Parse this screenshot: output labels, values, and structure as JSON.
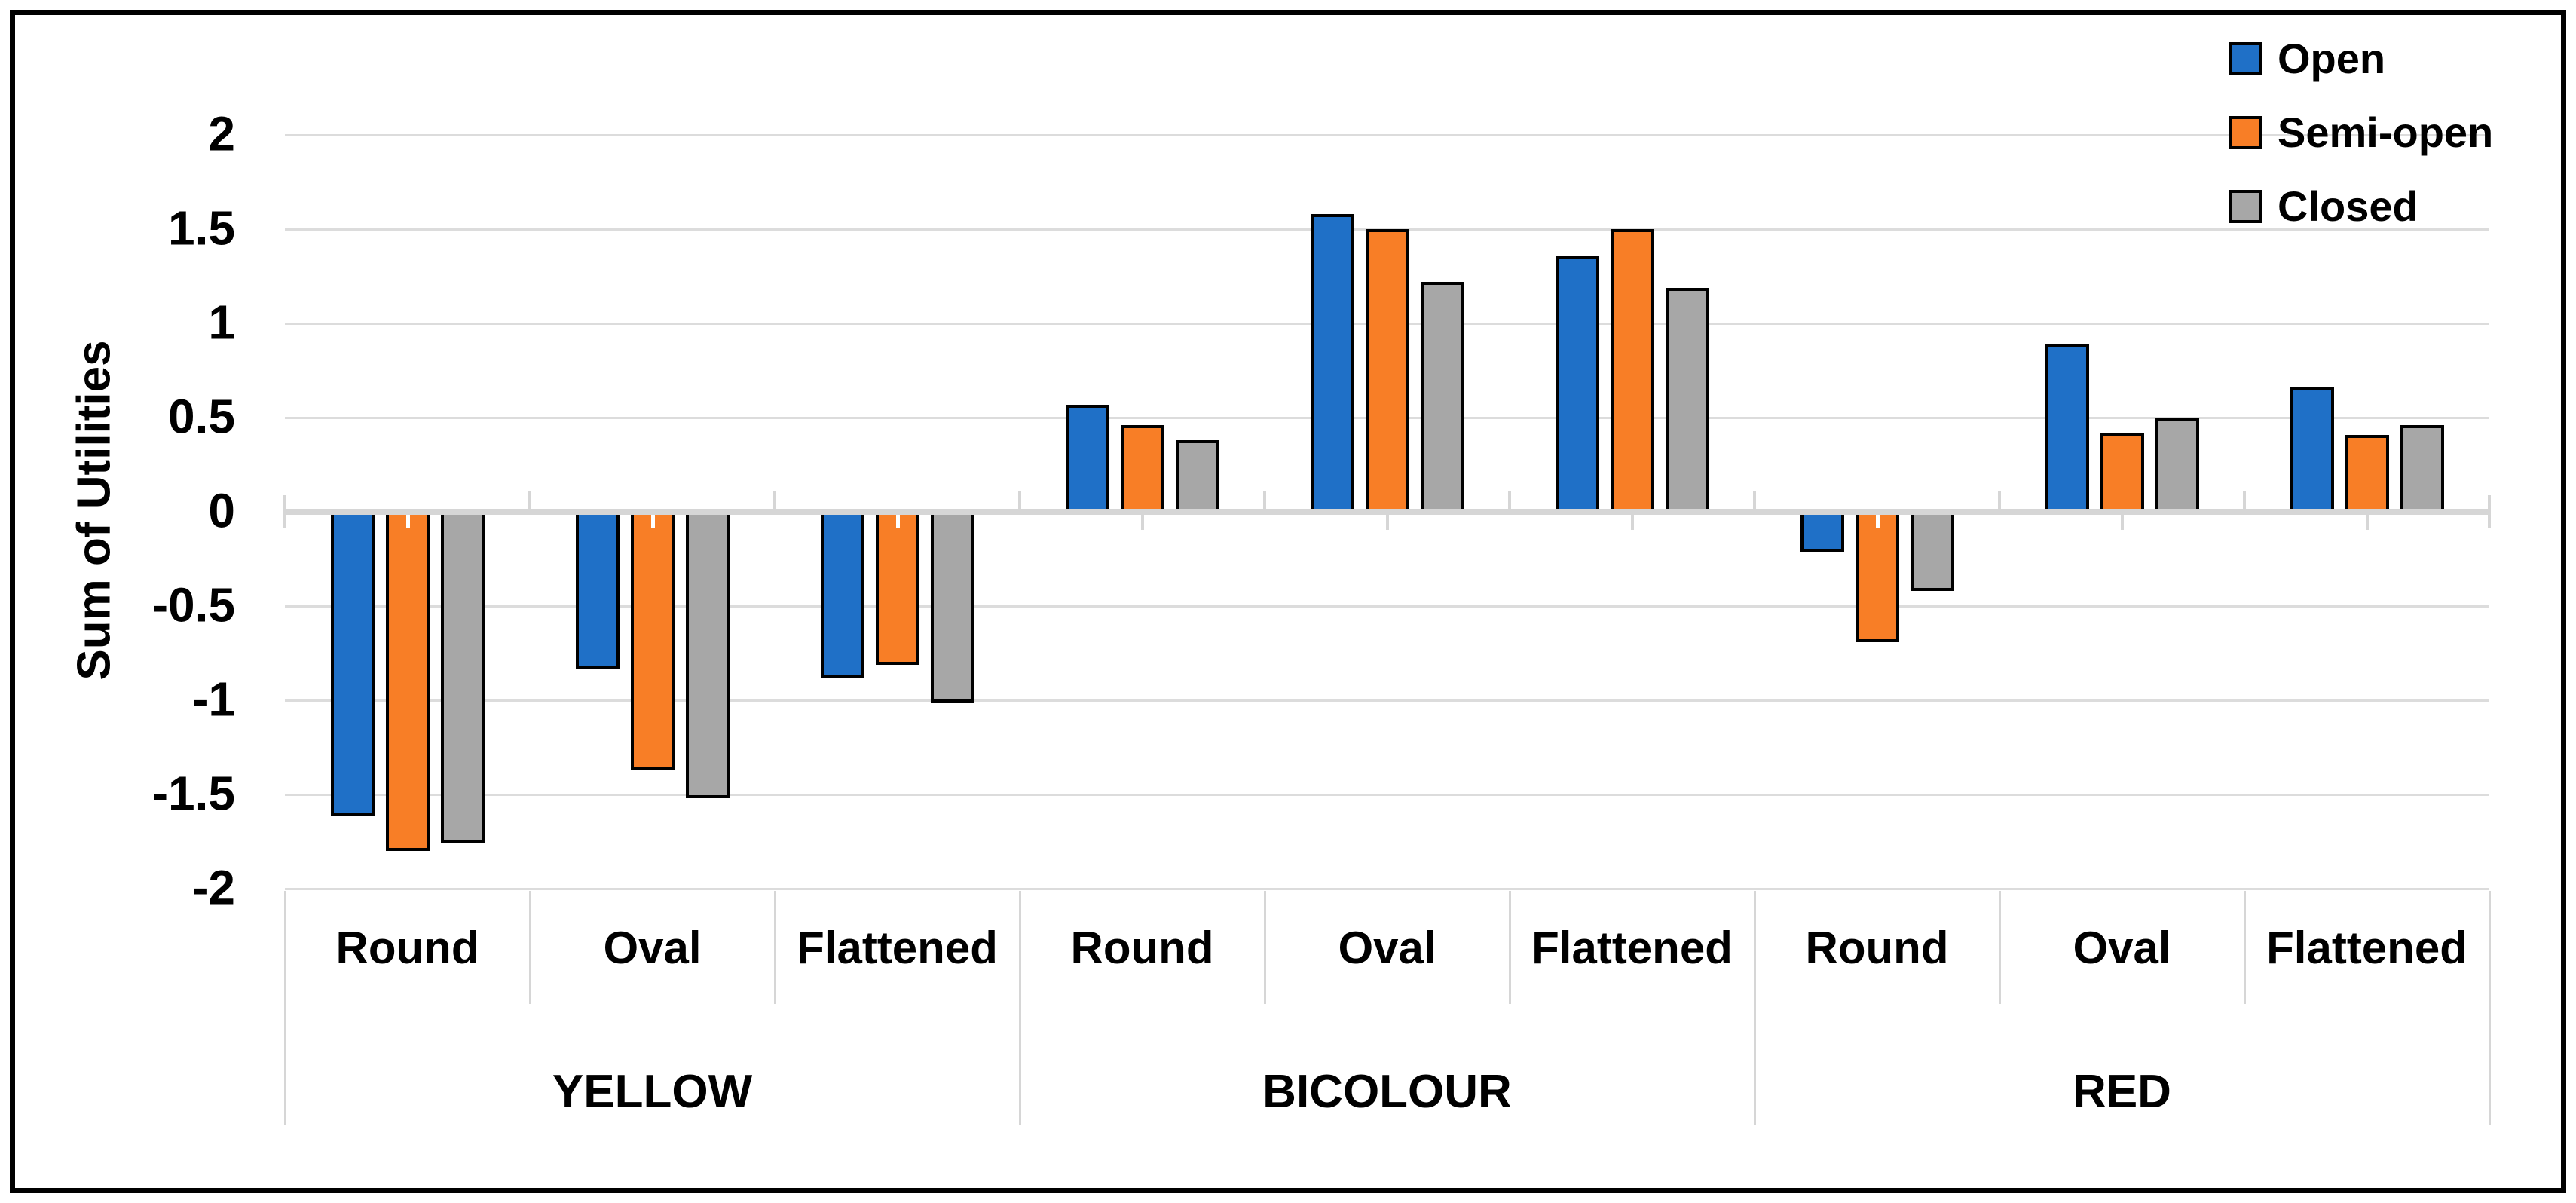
{
  "chart_data": {
    "type": "bar",
    "title": "",
    "ylabel": "Sum of Utilities",
    "xlabel": "",
    "ylim": [
      -2,
      2
    ],
    "ytick_step": 0.5,
    "ytick_labels": [
      "2",
      "1.5",
      "1",
      "0.5",
      "0",
      "-0.5",
      "-1",
      "-1.5",
      "-2"
    ],
    "grid": true,
    "legend_position": "top-right",
    "groups": [
      {
        "label": "YELLOW",
        "categories": [
          "Round",
          "Oval",
          "Flattened"
        ]
      },
      {
        "label": "BICOLOUR",
        "categories": [
          "Round",
          "Oval",
          "Flattened"
        ]
      },
      {
        "label": "RED",
        "categories": [
          "Round",
          "Oval",
          "Flattened"
        ]
      }
    ],
    "series": [
      {
        "name": "Open",
        "color": "#1F70C7",
        "values": [
          -1.61,
          -0.83,
          -0.88,
          0.57,
          1.58,
          1.36,
          -0.21,
          0.89,
          0.66
        ]
      },
      {
        "name": "Semi-open",
        "color": "#F87E26",
        "values": [
          -1.8,
          -1.37,
          -0.81,
          0.46,
          1.5,
          1.5,
          -0.69,
          0.42,
          0.41
        ]
      },
      {
        "name": "Closed",
        "color": "#A7A7A7",
        "values": [
          -1.76,
          -1.52,
          -1.01,
          0.38,
          1.22,
          1.19,
          -0.42,
          0.5,
          0.46
        ]
      }
    ],
    "style": {
      "gridline_color": "#DCDCDC",
      "axis_color": "#D6D6D6",
      "bar_border_color": "#000000",
      "text_color": "#000000"
    }
  }
}
